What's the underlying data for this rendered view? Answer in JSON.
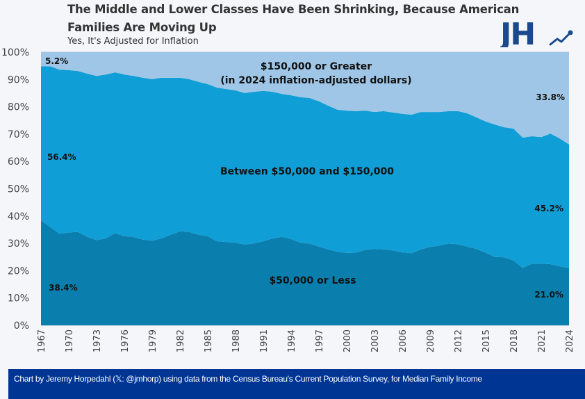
{
  "header": {
    "title": "The Middle and Lower Classes Have Been Shrinking, Because American Families Are Moving Up",
    "subtitle": "Yes, It's Adjusted for Inflation",
    "logo_text": "JH",
    "logo_icon": "trending-up-icon"
  },
  "footer": {
    "credit": "Chart by Jeremy Horpedahl (𝕏: @jmhorp) using data from the Census Bureau's Current Population Survey, for Median Family Income"
  },
  "colors": {
    "background": "#f4f6fa",
    "top_band": "#9fc6e6",
    "middle_band": "#109ed6",
    "bottom_band": "#0a7fae",
    "logo": "#1b4a8c",
    "footer_bg": "#003594"
  },
  "chart_data": {
    "type": "area",
    "stacked": true,
    "title": "The Middle and Lower Classes Have Been Shrinking, Because American Families Are Moving Up",
    "subtitle": "Yes, It's Adjusted for Inflation",
    "xlabel": "",
    "ylabel": "",
    "ylim": [
      0,
      100
    ],
    "y_ticks": [
      "0%",
      "10%",
      "20%",
      "30%",
      "40%",
      "50%",
      "60%",
      "70%",
      "80%",
      "90%",
      "100%"
    ],
    "x_ticks": [
      "1967",
      "1970",
      "1973",
      "1976",
      "1979",
      "1982",
      "1985",
      "1988",
      "1991",
      "1994",
      "1997",
      "2000",
      "2003",
      "2006",
      "2009",
      "2012",
      "2015",
      "2018",
      "2021",
      "2024"
    ],
    "grid": false,
    "legend": "none (inline labels)",
    "x": [
      1967,
      1968,
      1969,
      1970,
      1971,
      1972,
      1973,
      1974,
      1975,
      1976,
      1977,
      1978,
      1979,
      1980,
      1981,
      1982,
      1983,
      1984,
      1985,
      1986,
      1987,
      1988,
      1989,
      1990,
      1991,
      1992,
      1993,
      1994,
      1995,
      1996,
      1997,
      1998,
      1999,
      2000,
      2001,
      2002,
      2003,
      2004,
      2005,
      2006,
      2007,
      2008,
      2009,
      2010,
      2011,
      2012,
      2013,
      2014,
      2015,
      2016,
      2017,
      2018,
      2019,
      2020,
      2021,
      2022,
      2023,
      2024
    ],
    "series": [
      {
        "name": "$50,000 or Less",
        "values": [
          38.4,
          36.0,
          33.5,
          34.0,
          34.2,
          32.4,
          31.2,
          31.8,
          33.8,
          32.6,
          32.4,
          31.4,
          31.0,
          31.8,
          33.2,
          34.4,
          34.2,
          33.2,
          32.6,
          30.8,
          30.5,
          30.2,
          29.6,
          30.0,
          30.8,
          31.8,
          32.4,
          31.6,
          30.2,
          29.9,
          28.8,
          27.8,
          26.9,
          26.5,
          26.6,
          27.6,
          28.0,
          27.8,
          27.4,
          26.7,
          26.4,
          27.8,
          28.7,
          29.2,
          29.9,
          29.7,
          28.8,
          28.0,
          26.6,
          25.0,
          24.9,
          23.8,
          21.0,
          22.6,
          22.6,
          22.4,
          21.6,
          21.0
        ]
      },
      {
        "name": "Between $50,000 and $150,000",
        "values": [
          56.4,
          58.8,
          60.1,
          59.4,
          58.9,
          59.7,
          60.1,
          60.0,
          58.8,
          59.2,
          58.9,
          59.2,
          59.1,
          58.8,
          57.4,
          56.2,
          55.9,
          55.9,
          55.7,
          56.2,
          56.0,
          55.8,
          55.4,
          55.5,
          55.0,
          53.7,
          52.3,
          52.6,
          53.3,
          53.3,
          53.2,
          52.6,
          52.0,
          52.1,
          51.8,
          51.0,
          50.1,
          50.6,
          50.5,
          50.7,
          50.7,
          50.3,
          49.4,
          48.9,
          48.5,
          48.7,
          48.8,
          48.1,
          48.0,
          48.5,
          47.6,
          48.2,
          47.7,
          46.6,
          46.3,
          47.8,
          46.8,
          45.2
        ]
      },
      {
        "name": "$150,000 or Greater (in 2024 inflation-adjusted dollars)",
        "values": [
          5.2,
          5.2,
          6.4,
          6.6,
          6.9,
          7.9,
          8.7,
          8.2,
          7.4,
          8.2,
          8.7,
          9.4,
          9.9,
          9.4,
          9.4,
          9.4,
          9.9,
          10.9,
          11.7,
          13.0,
          13.5,
          14.0,
          15.0,
          14.5,
          14.2,
          14.5,
          15.3,
          15.8,
          16.5,
          16.8,
          18.0,
          19.6,
          21.1,
          21.4,
          21.6,
          21.4,
          21.9,
          21.6,
          22.1,
          22.6,
          22.9,
          21.9,
          21.9,
          21.9,
          21.6,
          21.6,
          22.4,
          23.9,
          25.4,
          26.5,
          27.5,
          28.0,
          31.3,
          30.8,
          31.1,
          29.8,
          31.6,
          33.8
        ]
      }
    ],
    "annotations": {
      "top_label_line1": "$150,000 or Greater",
      "top_label_line2": "(in 2024 inflation-adjusted dollars)",
      "middle_label": "Between $50,000 and $150,000",
      "bottom_label": "$50,000 or Less",
      "top_start": "5.2%",
      "middle_start": "56.4%",
      "bottom_start": "38.4%",
      "top_end": "33.8%",
      "middle_end": "45.2%",
      "bottom_end": "21.0%"
    }
  }
}
